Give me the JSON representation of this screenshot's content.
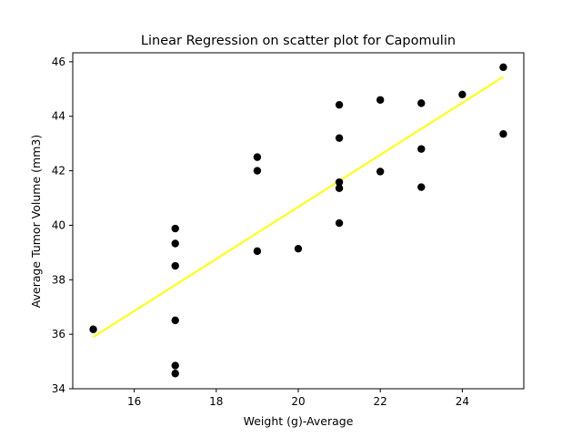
{
  "chart_data": {
    "type": "scatter",
    "title": "Linear Regression on scatter plot for Capomulin",
    "xlabel": "Weight (g)-Average",
    "ylabel": "Average Tumor Volume (mm3)",
    "xlim": [
      14.5,
      25.5
    ],
    "ylim": [
      34,
      46.33
    ],
    "xticks": [
      16,
      18,
      20,
      22,
      24
    ],
    "yticks": [
      34,
      36,
      38,
      40,
      42,
      44,
      46
    ],
    "grid": false,
    "legend": "none",
    "point_color": "#000000",
    "line_color": "#ffff00",
    "points": [
      {
        "x": 15,
        "y": 36.18
      },
      {
        "x": 17,
        "y": 39.88
      },
      {
        "x": 17,
        "y": 39.33
      },
      {
        "x": 17,
        "y": 38.51
      },
      {
        "x": 17,
        "y": 36.51
      },
      {
        "x": 17,
        "y": 34.85
      },
      {
        "x": 17,
        "y": 34.56
      },
      {
        "x": 19,
        "y": 42.5
      },
      {
        "x": 19,
        "y": 42.0
      },
      {
        "x": 19,
        "y": 39.05
      },
      {
        "x": 20,
        "y": 39.14
      },
      {
        "x": 21,
        "y": 44.42
      },
      {
        "x": 21,
        "y": 43.2
      },
      {
        "x": 21,
        "y": 41.58
      },
      {
        "x": 21,
        "y": 41.36
      },
      {
        "x": 21,
        "y": 40.08
      },
      {
        "x": 22,
        "y": 44.6
      },
      {
        "x": 22,
        "y": 41.97
      },
      {
        "x": 23,
        "y": 44.48
      },
      {
        "x": 23,
        "y": 42.8
      },
      {
        "x": 23,
        "y": 41.4
      },
      {
        "x": 24,
        "y": 44.8
      },
      {
        "x": 25,
        "y": 45.8
      },
      {
        "x": 25,
        "y": 43.35
      }
    ],
    "regression_line": {
      "x": [
        15,
        25
      ],
      "y": [
        35.9,
        45.45
      ]
    }
  }
}
